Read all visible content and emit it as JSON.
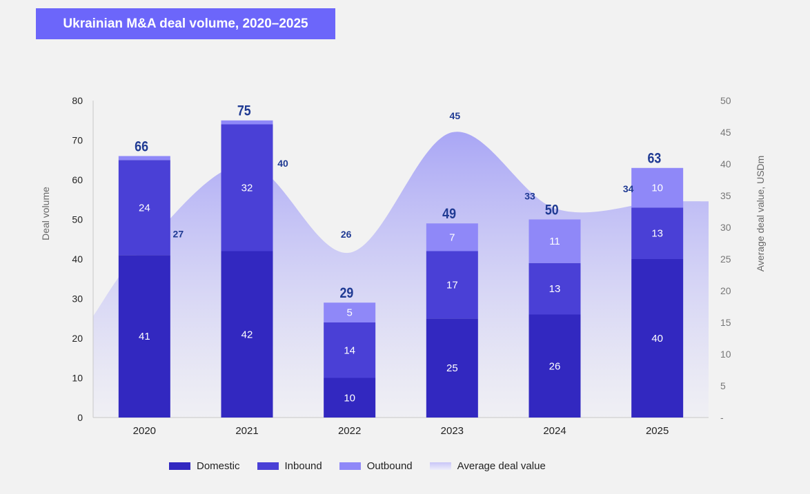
{
  "title": "Ukrainian M&A deal volume, 2020–2025",
  "chart_data": {
    "type": "bar",
    "stacked": true,
    "categories": [
      "2020",
      "2021",
      "2022",
      "2023",
      "2024",
      "2025"
    ],
    "series": [
      {
        "name": "Domestic",
        "values": [
          41,
          42,
          10,
          25,
          26,
          40
        ],
        "color": "#3228c0"
      },
      {
        "name": "Inbound",
        "values": [
          24,
          32,
          14,
          17,
          13,
          13
        ],
        "color": "#4a40d6"
      },
      {
        "name": "Outbound",
        "values": [
          1,
          1,
          5,
          7,
          11,
          10
        ],
        "color": "#8f88f8"
      }
    ],
    "segment_labels_shown": {
      "Outbound": [
        false,
        false,
        true,
        true,
        true,
        true
      ]
    },
    "totals": [
      66,
      75,
      29,
      49,
      50,
      63
    ],
    "area_series": {
      "name": "Average deal value",
      "values": [
        27,
        40,
        26,
        45,
        33,
        34
      ],
      "axis": "right",
      "color": "#a9a6f5"
    },
    "ylabel": "Deal volume",
    "ylim": [
      0,
      80
    ],
    "yticks": [
      0,
      10,
      20,
      30,
      40,
      50,
      60,
      70,
      80
    ],
    "y2label": "Average deal value, USDm",
    "y2lim": [
      0,
      50
    ],
    "y2ticks": [
      "-",
      "5",
      "10",
      "15",
      "20",
      "25",
      "30",
      "35",
      "40",
      "45",
      "50"
    ],
    "grid": false,
    "legend": "bottom"
  }
}
